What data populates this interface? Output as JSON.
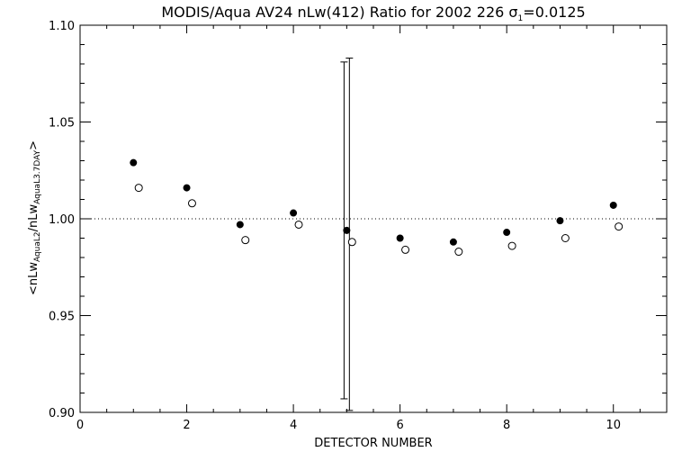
{
  "chart_data": {
    "type": "scatter",
    "title": {
      "main": "MODIS/Aqua AV24 nLw(412) Ratio for 2002 226 ",
      "sigma": "σ",
      "sigma_sub": "1",
      "sigma_value": "=0.0125"
    },
    "xlabel": "DETECTOR NUMBER",
    "ylabel": {
      "open": "<nLw",
      "sub1": "AquaL2",
      "mid": "/nLw",
      "sub2": "AquaL3.7DAY",
      "close": ">"
    },
    "xlim": [
      0,
      11
    ],
    "ylim": [
      0.9,
      1.1
    ],
    "x_ticks": [
      0,
      2,
      4,
      6,
      8,
      10
    ],
    "x_tick_labels": [
      "0",
      "2",
      "4",
      "6",
      "8",
      "10"
    ],
    "x_minor_step": 0.5,
    "y_ticks": [
      0.9,
      0.95,
      1.0,
      1.05,
      1.1
    ],
    "y_tick_labels": [
      "0.90",
      "0.95",
      "1.00",
      "1.05",
      "1.10"
    ],
    "y_minor_step": 0.01,
    "reference_line": {
      "y": 1.0,
      "style": "dotted"
    },
    "series": [
      {
        "marker": "filled-circle",
        "x": [
          1,
          2,
          3,
          4,
          5,
          6,
          7,
          8,
          9,
          10
        ],
        "y": [
          1.029,
          1.016,
          0.997,
          1.003,
          0.994,
          0.99,
          0.988,
          0.993,
          0.999,
          1.007
        ]
      },
      {
        "marker": "open-circle",
        "x": [
          1.1,
          2.1,
          3.1,
          4.1,
          5.1,
          6.1,
          7.1,
          8.1,
          9.1,
          10.1
        ],
        "y": [
          1.016,
          1.008,
          0.989,
          0.997,
          0.988,
          0.984,
          0.983,
          0.986,
          0.99,
          0.996
        ]
      }
    ],
    "error_bars": [
      {
        "x": 4.95,
        "low": 0.907,
        "high": 1.081
      },
      {
        "x": 5.05,
        "low": 0.901,
        "high": 1.083
      }
    ],
    "grid": false
  }
}
